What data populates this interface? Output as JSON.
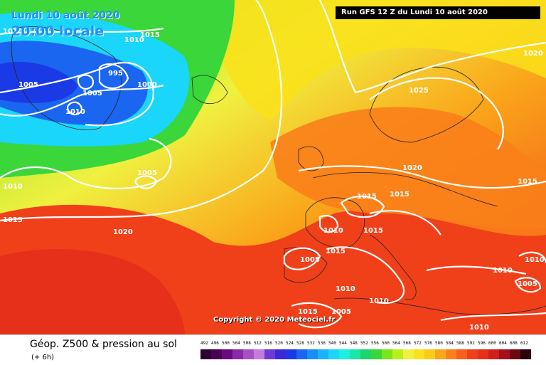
{
  "header": {
    "date_line": "Lundi 10 août 2020",
    "time_line": "20:00 locale",
    "run_label": "Run GFS 12 Z du Lundi 10 août 2020"
  },
  "map": {
    "copyright": "Copyright © 2020 Meteociel.fr",
    "isobar_labels": [
      {
        "text": "1010"
      },
      {
        "text": "1015"
      },
      {
        "text": "1010"
      },
      {
        "text": "995"
      },
      {
        "text": "1005"
      },
      {
        "text": "1000"
      },
      {
        "text": "1005"
      },
      {
        "text": "1010"
      },
      {
        "text": "1005"
      },
      {
        "text": "1020"
      },
      {
        "text": "1025"
      },
      {
        "text": "1020"
      },
      {
        "text": "1010"
      },
      {
        "text": "1015"
      },
      {
        "text": "1015"
      },
      {
        "text": "1015"
      },
      {
        "text": "1020"
      },
      {
        "text": "1010"
      },
      {
        "text": "1015"
      },
      {
        "text": "1015"
      },
      {
        "text": "1005"
      },
      {
        "text": "1010"
      },
      {
        "text": "1010"
      },
      {
        "text": "1015"
      },
      {
        "text": "1005"
      },
      {
        "text": "1010"
      },
      {
        "text": "1010"
      },
      {
        "text": "1010"
      },
      {
        "text": "1005"
      },
      {
        "text": "1015"
      }
    ]
  },
  "legend": {
    "title": "Géop. Z500 & pression au sol",
    "subtitle": "(+ 6h)",
    "scale": [
      {
        "label": "492",
        "color": "#2d0033"
      },
      {
        "label": "496",
        "color": "#4a0055"
      },
      {
        "label": "500",
        "color": "#6a0a80"
      },
      {
        "label": "504",
        "color": "#8a2aa6"
      },
      {
        "label": "508",
        "color": "#a84fc6"
      },
      {
        "label": "512",
        "color": "#c47be0"
      },
      {
        "label": "516",
        "color": "#6b3ad6"
      },
      {
        "label": "520",
        "color": "#3a2ad6"
      },
      {
        "label": "524",
        "color": "#1a3ae6"
      },
      {
        "label": "528",
        "color": "#1a66f0"
      },
      {
        "label": "532",
        "color": "#1a8ef7"
      },
      {
        "label": "536",
        "color": "#1ab4fa"
      },
      {
        "label": "540",
        "color": "#1ad6fa"
      },
      {
        "label": "544",
        "color": "#1af0e0"
      },
      {
        "label": "548",
        "color": "#1ae6a6"
      },
      {
        "label": "552",
        "color": "#1ad66b"
      },
      {
        "label": "556",
        "color": "#3ad63a"
      },
      {
        "label": "560",
        "color": "#7ae61a"
      },
      {
        "label": "564",
        "color": "#b8f01a"
      },
      {
        "label": "568",
        "color": "#f0f040"
      },
      {
        "label": "572",
        "color": "#fae01a"
      },
      {
        "label": "576",
        "color": "#facb1a"
      },
      {
        "label": "580",
        "color": "#faa51a"
      },
      {
        "label": "584",
        "color": "#fa801a"
      },
      {
        "label": "588",
        "color": "#f6601a"
      },
      {
        "label": "592",
        "color": "#f0401a"
      },
      {
        "label": "596",
        "color": "#e6301a"
      },
      {
        "label": "600",
        "color": "#d0201a"
      },
      {
        "label": "604",
        "color": "#a6101a"
      },
      {
        "label": "608",
        "color": "#6a0a10"
      },
      {
        "label": "612",
        "color": "#2a0508"
      }
    ]
  }
}
